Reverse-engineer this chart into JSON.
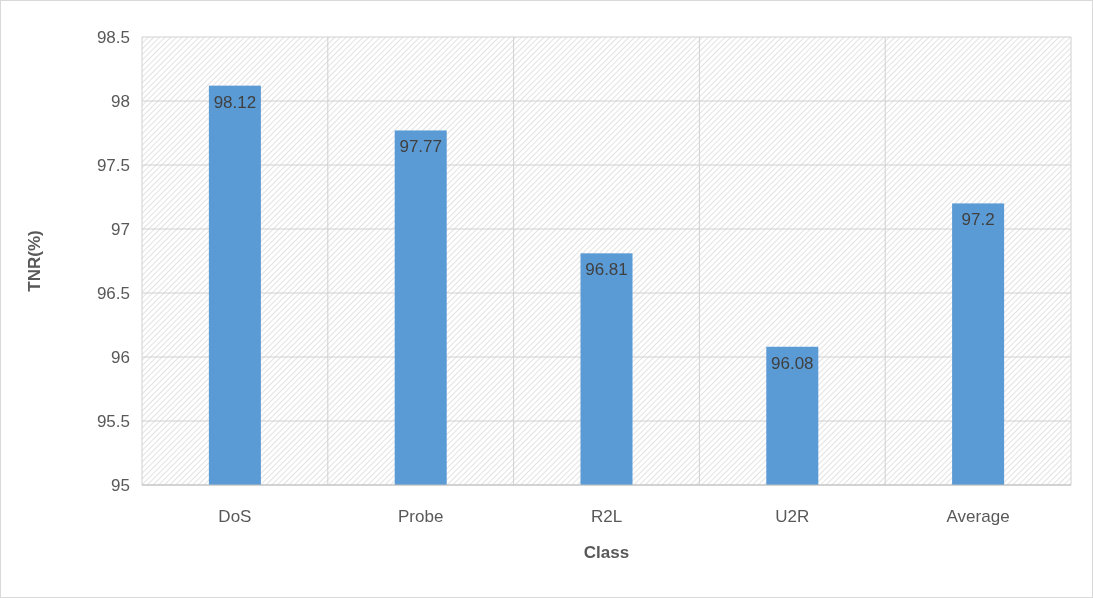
{
  "chart_data": {
    "type": "bar",
    "xlabel": "Class",
    "ylabel": "TNR(%)",
    "categories": [
      "DoS",
      "Probe",
      "R2L",
      "U2R",
      "Average"
    ],
    "values": [
      98.12,
      97.77,
      96.81,
      96.08,
      97.2
    ],
    "color": "#5b9bd5",
    "ylim": [
      95,
      98.5
    ],
    "yticks": [
      95,
      95.5,
      96,
      96.5,
      97,
      97.5,
      98,
      98.5
    ],
    "grid": true,
    "data_labels": true
  }
}
